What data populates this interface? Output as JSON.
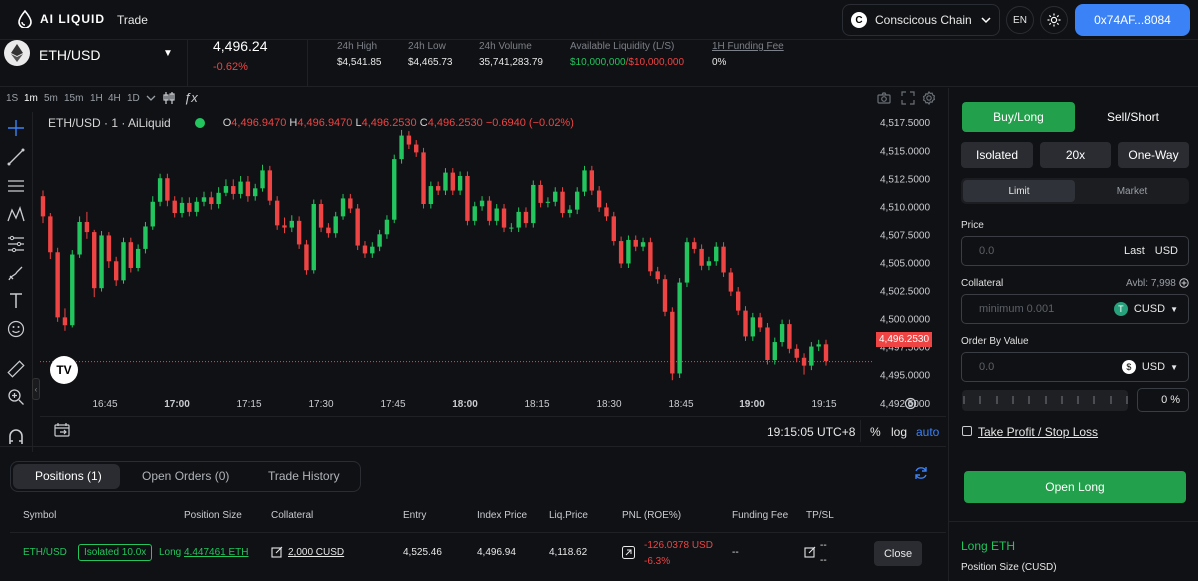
{
  "header": {
    "brand": "AI LIQUID",
    "nav_trade": "Trade",
    "chain": "Conscicous Chain",
    "lang": "EN",
    "wallet": "0x74AF...8084"
  },
  "ticker": {
    "pair": "ETH/USD",
    "price": "4,496.24",
    "change": "-0.62%",
    "stats": [
      {
        "label": "24h High",
        "value": "$4,541.85"
      },
      {
        "label": "24h Low",
        "value": "$4,465.73"
      },
      {
        "label": "24h Volume",
        "value": "35,741,283.79"
      },
      {
        "label": "Available Liquidity (L/S)",
        "value_long": "$10,000,000",
        "value_short": "/$10,000,000"
      },
      {
        "label": "1H Funding Fee",
        "value": "0%"
      }
    ]
  },
  "chart_toolbar": {
    "timeframes": [
      "1S",
      "1m",
      "5m",
      "15m",
      "1H",
      "4H",
      "1D"
    ],
    "active": "1m"
  },
  "chart_data": {
    "type": "candlestick",
    "title": "ETH/USD · 1 · AiLiquid",
    "ohlc": {
      "O": "4,496.9470",
      "H": "4,496.9470",
      "L": "4,496.2530",
      "C": "4,496.2530",
      "chg": "−0.6940 (−0.02%)"
    },
    "y_ticks": [
      "4,517.5000",
      "4,515.0000",
      "4,512.5000",
      "4,510.0000",
      "4,507.5000",
      "4,505.0000",
      "4,502.5000",
      "4,500.0000",
      "4,497.5000",
      "4,495.0000",
      "4,492.5000"
    ],
    "x_ticks": [
      "16:45",
      "17:00",
      "17:15",
      "17:30",
      "17:45",
      "18:00",
      "18:15",
      "18:30",
      "18:45",
      "19:00",
      "19:15"
    ],
    "ylim": [
      4491.5,
      4518.5
    ],
    "last_price": "4,496.2530",
    "candles": [
      [
        4511.0,
        4509.2,
        4511.5,
        4508.6
      ],
      [
        4509.2,
        4506.0,
        4509.5,
        4505.4
      ],
      [
        4506.0,
        4500.2,
        4506.4,
        4499.8
      ],
      [
        4500.2,
        4499.5,
        4501.0,
        4499.0
      ],
      [
        4499.5,
        4505.8,
        4506.2,
        4499.3
      ],
      [
        4505.8,
        4508.7,
        4509.2,
        4505.5
      ],
      [
        4508.7,
        4507.8,
        4509.6,
        4507.2
      ],
      [
        4507.8,
        4502.8,
        4508.0,
        4502.0
      ],
      [
        4502.8,
        4507.5,
        4507.9,
        4502.5
      ],
      [
        4507.5,
        4505.2,
        4507.8,
        4504.6
      ],
      [
        4505.2,
        4503.5,
        4505.6,
        4503.0
      ],
      [
        4503.5,
        4506.9,
        4507.3,
        4503.2
      ],
      [
        4506.9,
        4504.6,
        4507.3,
        4504.2
      ],
      [
        4504.6,
        4506.3,
        4506.7,
        4504.3
      ],
      [
        4506.3,
        4508.3,
        4508.7,
        4505.9
      ],
      [
        4508.3,
        4510.5,
        4511.0,
        4508.0
      ],
      [
        4510.5,
        4512.6,
        4513.0,
        4510.1
      ],
      [
        4512.6,
        4510.6,
        4513.0,
        4510.1
      ],
      [
        4510.6,
        4509.5,
        4511.0,
        4509.1
      ],
      [
        4509.5,
        4510.4,
        4510.9,
        4509.1
      ],
      [
        4510.4,
        4509.6,
        4510.9,
        4509.2
      ],
      [
        4509.6,
        4510.5,
        4510.9,
        4509.2
      ],
      [
        4510.5,
        4510.9,
        4511.4,
        4510.1
      ],
      [
        4510.9,
        4510.3,
        4511.4,
        4509.8
      ],
      [
        4510.3,
        4511.3,
        4511.8,
        4509.9
      ],
      [
        4511.3,
        4511.9,
        4512.5,
        4511.0
      ],
      [
        4511.9,
        4511.2,
        4512.5,
        4510.7
      ],
      [
        4511.2,
        4512.3,
        4512.8,
        4510.8
      ],
      [
        4512.3,
        4511.0,
        4512.8,
        4510.5
      ],
      [
        4511.0,
        4511.7,
        4512.1,
        4510.6
      ],
      [
        4511.7,
        4513.3,
        4513.8,
        4511.4
      ],
      [
        4513.3,
        4510.6,
        4513.7,
        4510.2
      ],
      [
        4510.6,
        4508.4,
        4511.0,
        4508.0
      ],
      [
        4508.4,
        4508.2,
        4509.1,
        4507.7
      ],
      [
        4508.2,
        4508.8,
        4509.3,
        4507.8
      ],
      [
        4508.8,
        4506.7,
        4509.2,
        4506.3
      ],
      [
        4506.7,
        4504.4,
        4507.1,
        4504.0
      ],
      [
        4504.4,
        4510.3,
        4510.7,
        4504.1
      ],
      [
        4510.3,
        4508.2,
        4510.7,
        4507.8
      ],
      [
        4508.2,
        4507.7,
        4508.6,
        4507.3
      ],
      [
        4507.7,
        4509.2,
        4509.6,
        4507.3
      ],
      [
        4509.2,
        4510.8,
        4511.2,
        4508.9
      ],
      [
        4510.8,
        4509.9,
        4511.2,
        4509.5
      ],
      [
        4509.9,
        4506.6,
        4510.3,
        4506.2
      ],
      [
        4506.6,
        4505.9,
        4507.0,
        4505.5
      ],
      [
        4505.9,
        4506.5,
        4506.9,
        4505.5
      ],
      [
        4506.5,
        4507.6,
        4508.0,
        4506.1
      ],
      [
        4507.6,
        4508.9,
        4509.3,
        4507.2
      ],
      [
        4508.9,
        4514.3,
        4514.7,
        4508.6
      ],
      [
        4514.3,
        4516.4,
        4516.9,
        4513.9
      ],
      [
        4516.4,
        4515.6,
        4516.8,
        4515.2
      ],
      [
        4515.6,
        4514.9,
        4516.0,
        4514.5
      ],
      [
        4514.9,
        4510.3,
        4515.3,
        4509.9
      ],
      [
        4510.3,
        4511.9,
        4512.3,
        4509.9
      ],
      [
        4511.9,
        4511.5,
        4512.3,
        4511.1
      ],
      [
        4511.5,
        4513.1,
        4513.5,
        4511.1
      ],
      [
        4513.1,
        4511.5,
        4513.5,
        4511.1
      ],
      [
        4511.5,
        4512.8,
        4513.2,
        4511.1
      ],
      [
        4512.8,
        4508.8,
        4513.2,
        4508.4
      ],
      [
        4508.8,
        4510.1,
        4510.5,
        4508.4
      ],
      [
        4510.1,
        4510.6,
        4511.0,
        4509.7
      ],
      [
        4510.6,
        4508.8,
        4511.0,
        4508.4
      ],
      [
        4508.8,
        4509.9,
        4510.3,
        4508.4
      ],
      [
        4509.9,
        4508.2,
        4510.3,
        4507.8
      ],
      [
        4508.2,
        4508.2,
        4508.6,
        4507.8
      ],
      [
        4508.2,
        4509.6,
        4510.0,
        4507.8
      ],
      [
        4509.6,
        4508.6,
        4510.0,
        4508.2
      ],
      [
        4508.6,
        4512.0,
        4512.4,
        4508.2
      ],
      [
        4512.0,
        4510.4,
        4512.4,
        4510.0
      ],
      [
        4510.4,
        4510.5,
        4510.9,
        4510.0
      ],
      [
        4510.5,
        4511.4,
        4511.8,
        4510.1
      ],
      [
        4511.4,
        4509.5,
        4511.8,
        4509.1
      ],
      [
        4509.5,
        4509.8,
        4510.2,
        4509.1
      ],
      [
        4509.8,
        4511.4,
        4511.8,
        4509.4
      ],
      [
        4511.4,
        4513.3,
        4513.7,
        4511.0
      ],
      [
        4513.3,
        4511.5,
        4513.7,
        4511.1
      ],
      [
        4511.5,
        4510.0,
        4511.9,
        4509.6
      ],
      [
        4510.0,
        4509.2,
        4510.4,
        4508.8
      ],
      [
        4509.2,
        4507.0,
        4509.6,
        4506.6
      ],
      [
        4507.0,
        4505.0,
        4507.4,
        4504.6
      ],
      [
        4505.0,
        4507.1,
        4507.5,
        4504.6
      ],
      [
        4507.1,
        4506.5,
        4507.5,
        4506.1
      ],
      [
        4506.5,
        4506.9,
        4507.3,
        4506.1
      ],
      [
        4506.9,
        4504.3,
        4507.3,
        4503.9
      ],
      [
        4504.3,
        4503.6,
        4504.7,
        4503.2
      ],
      [
        4503.6,
        4500.7,
        4504.0,
        4500.3
      ],
      [
        4500.7,
        4495.2,
        4501.1,
        4494.6
      ],
      [
        4495.2,
        4503.3,
        4503.7,
        4494.8
      ],
      [
        4503.3,
        4506.9,
        4507.3,
        4502.9
      ],
      [
        4506.9,
        4506.3,
        4507.3,
        4505.9
      ],
      [
        4506.3,
        4504.8,
        4506.7,
        4504.4
      ],
      [
        4504.8,
        4505.2,
        4505.6,
        4504.4
      ],
      [
        4505.2,
        4506.5,
        4506.9,
        4504.8
      ],
      [
        4506.5,
        4504.2,
        4506.9,
        4503.8
      ],
      [
        4504.2,
        4502.5,
        4504.6,
        4502.1
      ],
      [
        4502.5,
        4500.8,
        4502.9,
        4500.4
      ],
      [
        4500.8,
        4498.5,
        4501.2,
        4498.1
      ],
      [
        4498.5,
        4500.2,
        4500.6,
        4498.1
      ],
      [
        4500.2,
        4499.3,
        4500.6,
        4498.9
      ],
      [
        4499.3,
        4496.4,
        4499.7,
        4496.0
      ],
      [
        4496.4,
        4498.0,
        4498.4,
        4496.0
      ],
      [
        4498.0,
        4499.6,
        4500.0,
        4497.6
      ],
      [
        4499.6,
        4497.4,
        4500.0,
        4497.0
      ],
      [
        4497.4,
        4496.6,
        4497.8,
        4496.2
      ],
      [
        4496.6,
        4495.9,
        4497.0,
        4495.1
      ],
      [
        4495.9,
        4497.6,
        4498.0,
        4495.5
      ],
      [
        4497.6,
        4497.8,
        4498.2,
        4497.2
      ],
      [
        4497.8,
        4496.3,
        4498.2,
        4495.9
      ]
    ]
  },
  "chart_footer": {
    "time": "19:15:05 UTC+8",
    "percent": "%",
    "log": "log",
    "auto": "auto"
  },
  "order_panel": {
    "side_buy": "Buy/Long",
    "side_sell": "Sell/Short",
    "margin": "Isolated",
    "leverage": "20x",
    "mode": "One-Way",
    "type_limit": "Limit",
    "type_market": "Market",
    "price_label": "Price",
    "price_placeholder": "0.0",
    "price_suffix_a": "Last",
    "price_suffix_b": "USD",
    "collateral_label": "Collateral",
    "avbl": "Avbl: 7,998",
    "collateral_placeholder": "minimum 0.001",
    "collateral_token": "CUSD",
    "order_value_label": "Order By Value",
    "order_value_placeholder": "0.0",
    "order_value_token": "USD",
    "pct": "0",
    "pct_sign": "%",
    "tpsl": "Take Profit / Stop Loss",
    "submit": "Open Long",
    "summary_title": "Long ETH",
    "summary_row": "Position Size (CUSD)"
  },
  "positions": {
    "tabs": [
      "Positions (1)",
      "Open Orders (0)",
      "Trade History"
    ],
    "headers": [
      "Symbol",
      "Position Size",
      "Collateral",
      "Entry",
      "Index Price",
      "Liq.Price",
      "PNL (ROE%)",
      "Funding Fee",
      "TP/SL"
    ],
    "row": {
      "symbol": "ETH/USD",
      "badge": "Isolated 10.0x",
      "side": "Long",
      "size": "4.447461 ETH",
      "collateral": "2,000 CUSD",
      "entry": "4,525.46",
      "index": "4,496.94",
      "liq": "4,118.62",
      "pnl": "-126.0378 USD",
      "roe": "-6.3%",
      "funding": "--",
      "tp": "--",
      "sl": "--",
      "close": "Close"
    }
  },
  "colors": {
    "up": "#22c55e",
    "down": "#ef4444",
    "accent": "#3b82f6",
    "buy": "#22a04b"
  }
}
